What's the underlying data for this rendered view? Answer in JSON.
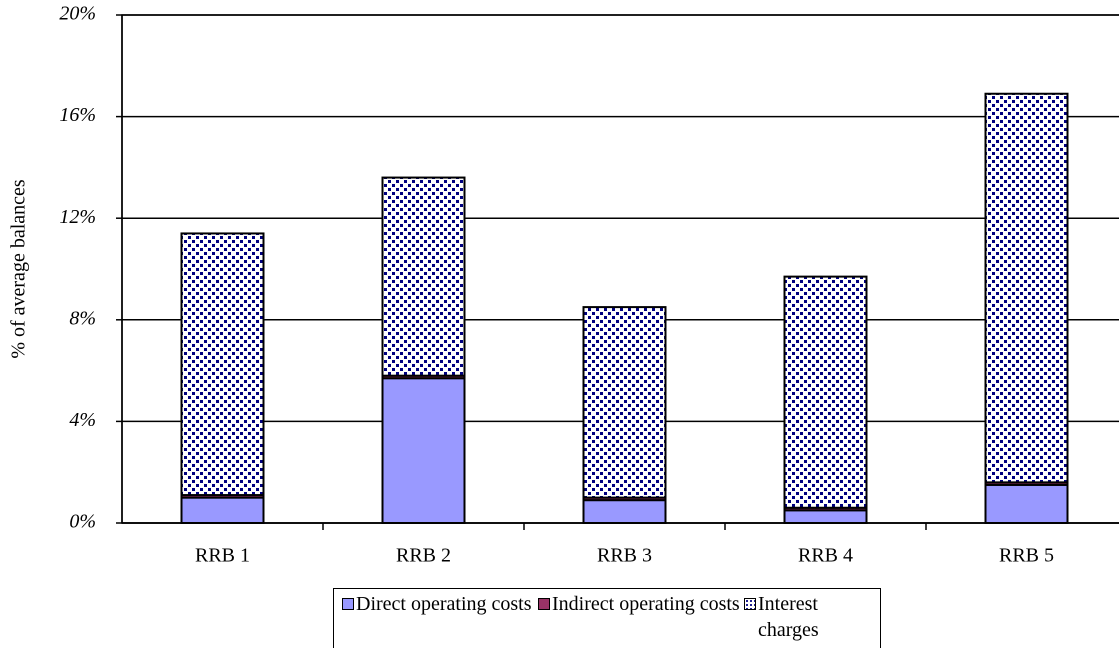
{
  "chart_data": {
    "type": "stacked-bar",
    "y_label": "% of average balances",
    "categories": [
      "RRB 1",
      "RRB 2",
      "RRB 3",
      "RRB 4",
      "RRB 5"
    ],
    "series": [
      {
        "name": "Direct operating costs",
        "color": "#9999ff",
        "values": [
          1.0,
          5.7,
          0.9,
          0.5,
          1.5
        ]
      },
      {
        "name": "Indirect operating costs",
        "color": "#993366",
        "values": [
          0.1,
          0.1,
          0.1,
          0.1,
          0.1
        ]
      },
      {
        "name": "Interest charges",
        "color": "#000080",
        "pattern": "dots",
        "values": [
          10.3,
          7.8,
          7.5,
          9.1,
          15.3
        ]
      }
    ],
    "ylim": [
      0,
      20
    ],
    "yticks": [
      {
        "value": 0,
        "label": "0%"
      },
      {
        "value": 4,
        "label": "4%"
      },
      {
        "value": 8,
        "label": "8%"
      },
      {
        "value": 12,
        "label": "12%"
      },
      {
        "value": 16,
        "label": "16%"
      },
      {
        "value": 20,
        "label": "20%"
      }
    ],
    "grid": true,
    "legend": "bottom"
  }
}
